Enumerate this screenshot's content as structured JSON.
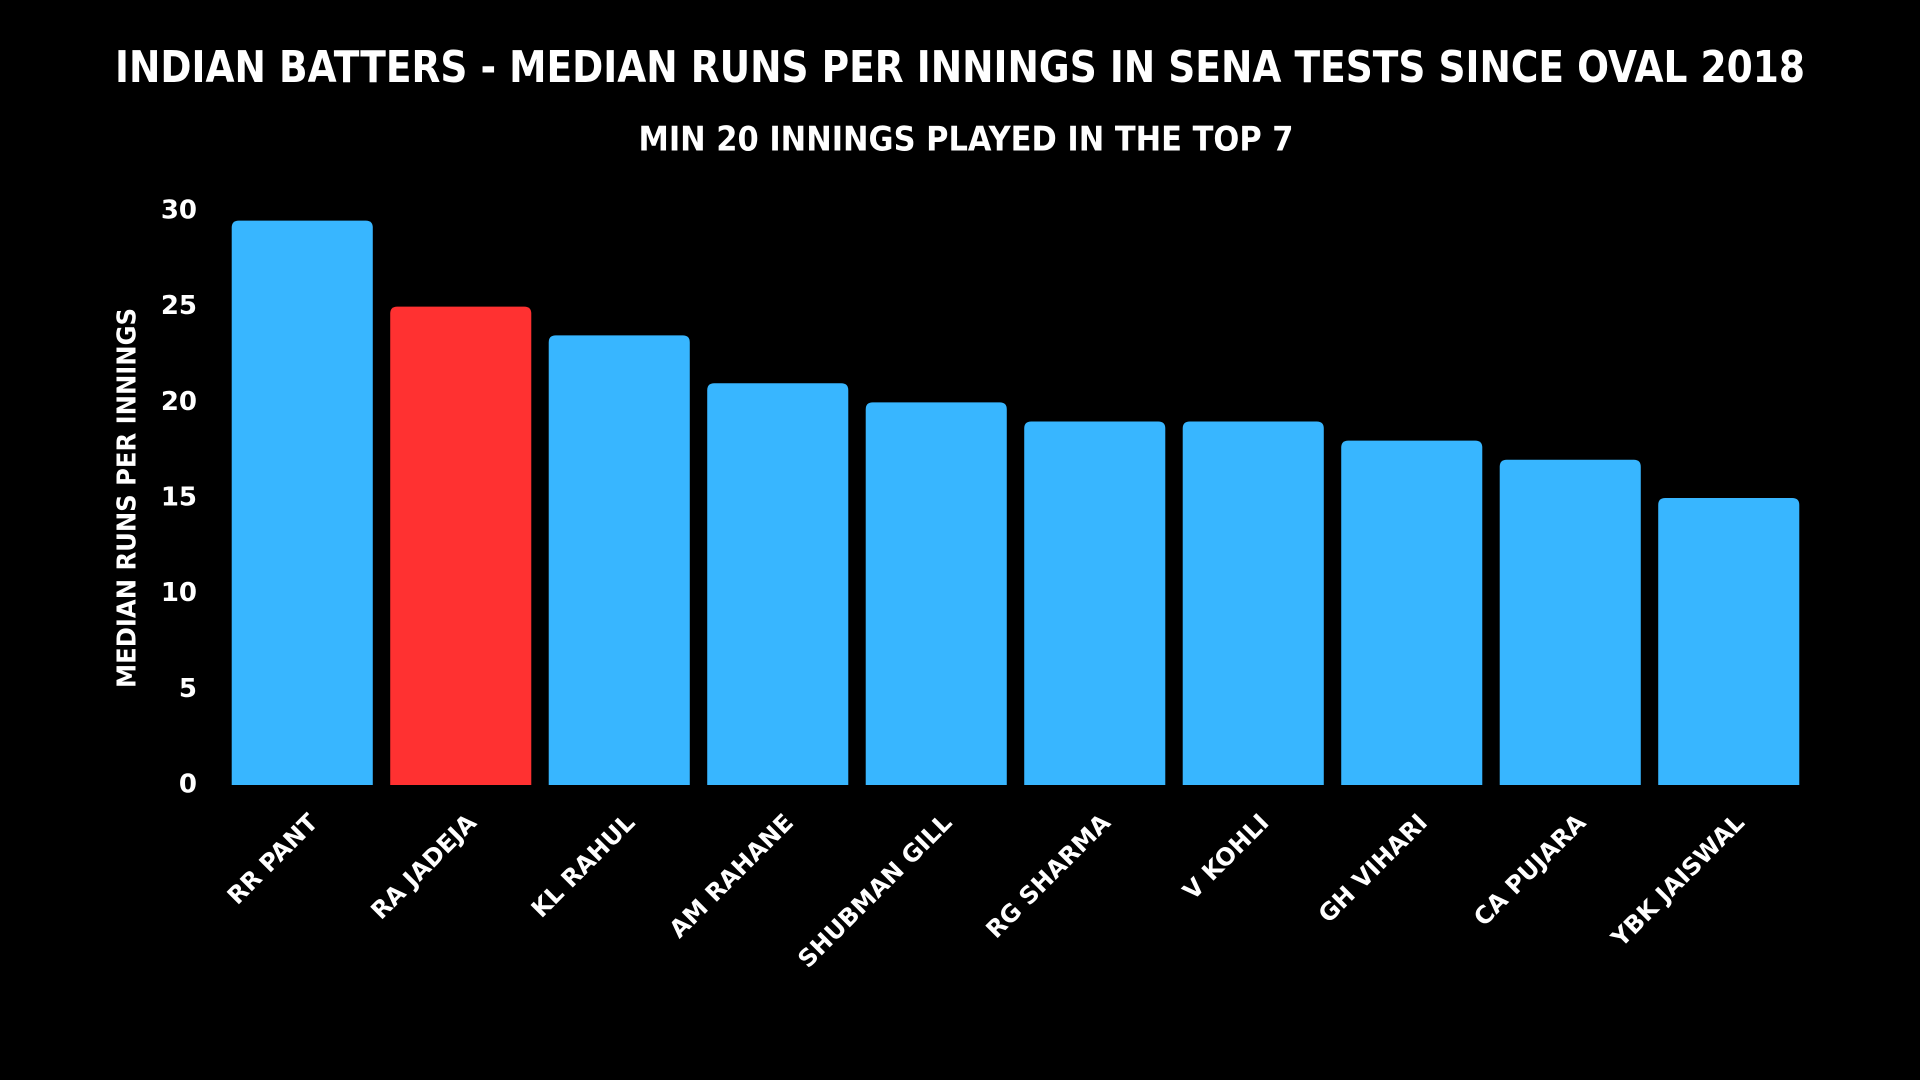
{
  "chart_data": {
    "type": "bar",
    "title": "INDIAN BATTERS - MEDIAN RUNS PER INNINGS IN SENA TESTS SINCE OVAL 2018",
    "subtitle": "MIN 20 INNINGS PLAYED IN THE TOP 7",
    "y_label": "MEDIAN RUNS PER INNINGS",
    "categories": [
      "RR PANT",
      "RA JADEJA",
      "KL RAHUL",
      "AM RAHANE",
      "SHUBMAN GILL",
      "RG SHARMA",
      "V KOHLI",
      "GH VIHARI",
      "CA PUJARA",
      "YBK JAISWAL"
    ],
    "values": [
      29.5,
      25,
      23.5,
      21,
      20,
      19,
      19,
      18,
      17,
      15
    ],
    "colors": [
      "#38b6ff",
      "#ff3131",
      "#38b6ff",
      "#38b6ff",
      "#38b6ff",
      "#38b6ff",
      "#38b6ff",
      "#38b6ff",
      "#38b6ff",
      "#38b6ff"
    ],
    "ylim": [
      0,
      30
    ],
    "yticks": [
      0,
      5,
      10,
      15,
      20,
      25,
      30
    ],
    "grid": false
  }
}
